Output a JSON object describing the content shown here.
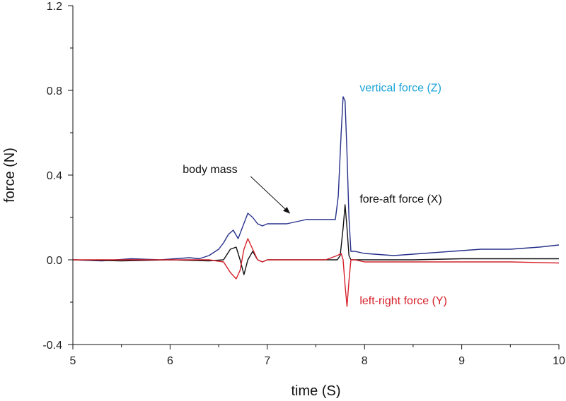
{
  "chart_data": {
    "type": "line",
    "title": "",
    "xlabel": "time (S)",
    "ylabel": "force (N)",
    "xlim": [
      5,
      10
    ],
    "ylim": [
      -0.4,
      1.2
    ],
    "x_ticks": [
      5,
      6,
      7,
      8,
      9,
      10
    ],
    "x_tick_labels": [
      "5",
      "6",
      "7",
      "8",
      "9",
      "10"
    ],
    "y_ticks": [
      -0.4,
      0.0,
      0.4,
      0.8,
      1.2
    ],
    "y_tick_labels": [
      "-0.4",
      "0.0",
      "0.4",
      "0.8",
      "1.2"
    ],
    "grid": false,
    "series": [
      {
        "name": "vertical force (Z)",
        "color": "#27308a",
        "x": [
          5.0,
          5.3,
          5.6,
          5.9,
          6.2,
          6.3,
          6.4,
          6.5,
          6.55,
          6.6,
          6.65,
          6.7,
          6.75,
          6.8,
          6.85,
          6.9,
          6.95,
          7.0,
          7.1,
          7.2,
          7.3,
          7.4,
          7.5,
          7.6,
          7.7,
          7.73,
          7.76,
          7.78,
          7.8,
          7.82,
          7.84,
          7.86,
          7.9,
          8.0,
          8.3,
          8.6,
          8.9,
          9.2,
          9.5,
          9.8,
          10.0
        ],
        "values": [
          0.0,
          -0.005,
          0.005,
          0.0,
          0.01,
          0.005,
          0.02,
          0.05,
          0.08,
          0.12,
          0.14,
          0.1,
          0.16,
          0.22,
          0.2,
          0.17,
          0.16,
          0.17,
          0.17,
          0.17,
          0.18,
          0.19,
          0.19,
          0.19,
          0.19,
          0.3,
          0.6,
          0.77,
          0.75,
          0.5,
          0.2,
          0.04,
          0.04,
          0.03,
          0.02,
          0.03,
          0.04,
          0.05,
          0.05,
          0.06,
          0.07
        ]
      },
      {
        "name": "fore-aft force (X)",
        "color": "#111111",
        "x": [
          5.0,
          5.5,
          6.0,
          6.4,
          6.55,
          6.62,
          6.68,
          6.72,
          6.76,
          6.8,
          6.85,
          6.9,
          6.95,
          7.0,
          7.2,
          7.5,
          7.72,
          7.75,
          7.78,
          7.8,
          7.82,
          7.84,
          7.86,
          7.9,
          8.0,
          8.5,
          9.0,
          9.5,
          10.0
        ],
        "values": [
          0.0,
          -0.005,
          0.0,
          -0.005,
          0.0,
          0.05,
          0.06,
          0.0,
          -0.07,
          0.0,
          0.04,
          0.0,
          -0.01,
          0.0,
          0.0,
          0.0,
          0.0,
          0.02,
          0.15,
          0.26,
          0.15,
          0.02,
          0.0,
          0.0,
          0.0,
          0.0,
          0.005,
          0.005,
          0.005
        ]
      },
      {
        "name": "left-right force (Y)",
        "color": "#d6202a",
        "x": [
          5.0,
          5.5,
          6.0,
          6.4,
          6.55,
          6.62,
          6.68,
          6.72,
          6.76,
          6.8,
          6.85,
          6.9,
          6.95,
          7.0,
          7.3,
          7.6,
          7.72,
          7.76,
          7.78,
          7.8,
          7.82,
          7.84,
          7.86,
          7.9,
          8.0,
          8.5,
          9.0,
          9.5,
          10.0
        ],
        "values": [
          0.0,
          0.0,
          0.0,
          0.0,
          -0.01,
          -0.06,
          -0.09,
          -0.05,
          0.05,
          0.1,
          0.05,
          0.0,
          -0.01,
          0.0,
          0.0,
          0.0,
          0.02,
          0.03,
          0.0,
          -0.12,
          -0.22,
          -0.1,
          0.0,
          0.0,
          -0.01,
          -0.01,
          -0.01,
          -0.01,
          -0.015
        ]
      }
    ],
    "annotations": [
      {
        "text": "vertical force (Z)",
        "color": "#1ba3d8",
        "x": 7.95,
        "y": 0.795
      },
      {
        "text": "fore-aft force (X)",
        "color": "#111111",
        "x": 7.95,
        "y": 0.27
      },
      {
        "text": "left-right force (Y)",
        "color": "#d6202a",
        "x": 7.95,
        "y": -0.21
      },
      {
        "text": "body mass",
        "color": "#111111",
        "x": 6.13,
        "y": 0.41,
        "arrow_to": [
          7.23,
          0.22
        ]
      }
    ]
  }
}
